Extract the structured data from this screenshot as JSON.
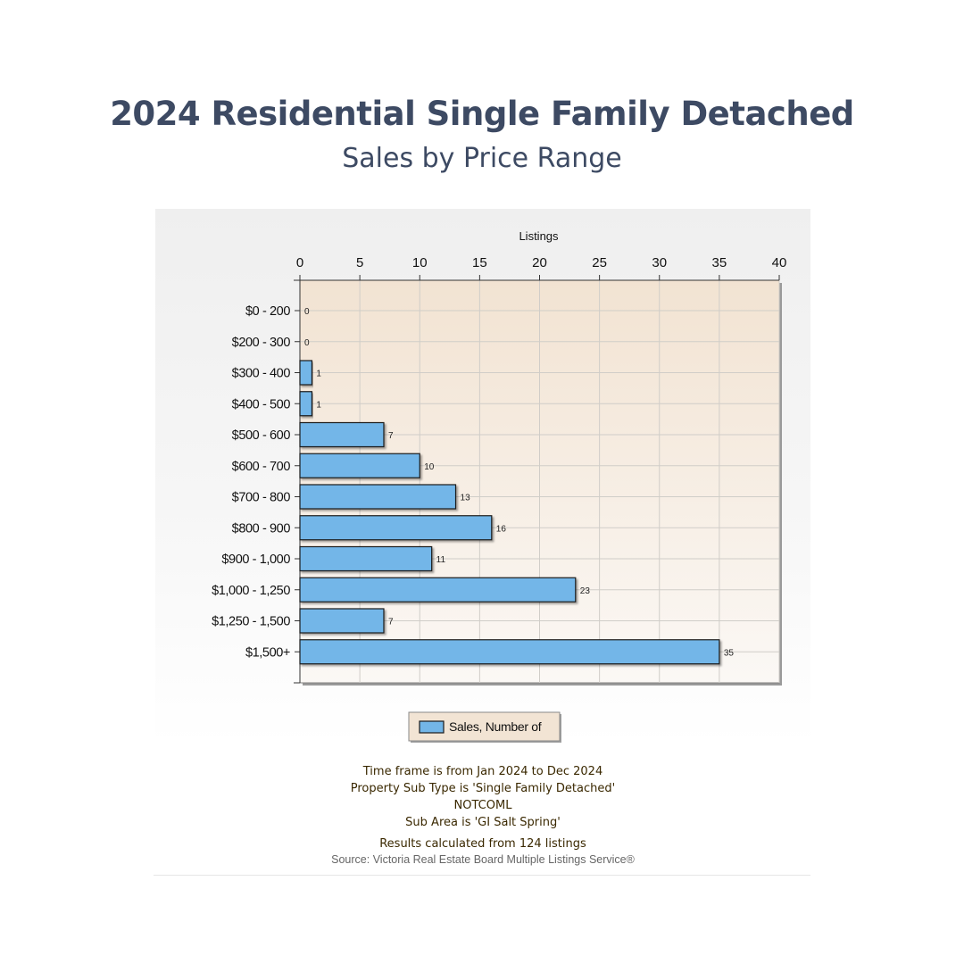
{
  "header": {
    "title": "2024 Residential Single Family Detached",
    "subtitle": "Sales by Price Range"
  },
  "chart_data": {
    "type": "bar",
    "orientation": "horizontal",
    "categories": [
      "$0 - 200",
      "$200 - 300",
      "$300 - 400",
      "$400 - 500",
      "$500 - 600",
      "$600 - 700",
      "$700 - 800",
      "$800 - 900",
      "$900 - 1,000",
      "$1,000 - 1,250",
      "$1,250 - 1,500",
      "$1,500+"
    ],
    "series": [
      {
        "name": "Sales, Number of",
        "values": [
          0,
          0,
          1,
          1,
          7,
          10,
          13,
          16,
          11,
          23,
          7,
          35
        ],
        "color": "#73b6e8"
      }
    ],
    "xlabel": "Listings",
    "ylabel": "",
    "xlim": [
      0,
      40
    ],
    "xticks": [
      0,
      5,
      10,
      15,
      20,
      25,
      30,
      35,
      40
    ],
    "x_axis_position": "top",
    "data_labels": true,
    "grid": true,
    "legend_position": "bottom-center",
    "plot_background": "#f2e4d4"
  },
  "footer": {
    "lines": [
      "Time frame is from Jan 2024 to Dec 2024",
      "Property Sub Type is 'Single Family Detached'",
      "NOTCOML",
      "Sub Area is 'GI Salt Spring'"
    ],
    "results": "Results calculated from 124 listings",
    "source": "Source: Victoria Real Estate Board Multiple Listings Service®"
  }
}
